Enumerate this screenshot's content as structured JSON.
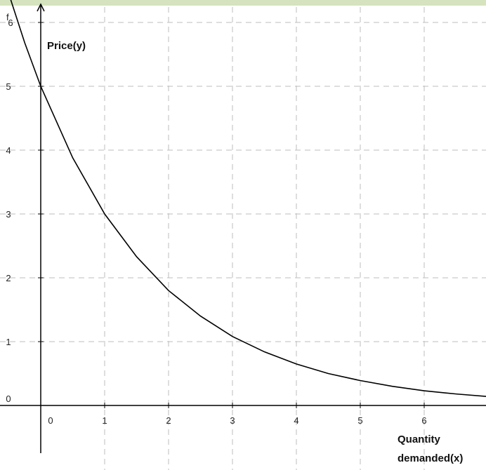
{
  "chart_data": {
    "type": "line",
    "title": "",
    "function_label": "f",
    "xlabel_lines": [
      "Quantity",
      "demanded(x)"
    ],
    "ylabel": "Price(y)",
    "xlim": [
      -0.45,
      7.0
    ],
    "ylim": [
      -0.75,
      6.3
    ],
    "grid": true,
    "x_ticks": [
      0,
      1,
      2,
      3,
      4,
      5,
      6
    ],
    "y_ticks": [
      0,
      1,
      2,
      3,
      4,
      5,
      6
    ],
    "x_tick_labels": [
      "0",
      "1",
      "2",
      "3",
      "4",
      "5",
      "6"
    ],
    "y_tick_labels": [
      "0",
      "1",
      "2",
      "3",
      "4",
      "5",
      "6"
    ],
    "series": [
      {
        "x": [
          -0.5,
          -0.25,
          0,
          0.5,
          1,
          1.5,
          2,
          2.5,
          3,
          3.5,
          4,
          4.5,
          5,
          5.5,
          6,
          6.5,
          7
        ],
        "y": [
          6.45,
          5.68,
          5.0,
          3.88,
          3.0,
          2.33,
          1.8,
          1.4,
          1.08,
          0.84,
          0.65,
          0.5,
          0.39,
          0.3,
          0.23,
          0.18,
          0.14
        ]
      }
    ],
    "colors": {
      "curve": "#000000",
      "grid": "#bdbdbd",
      "axis": "#000000",
      "top_band": "#d6e3bf"
    }
  }
}
